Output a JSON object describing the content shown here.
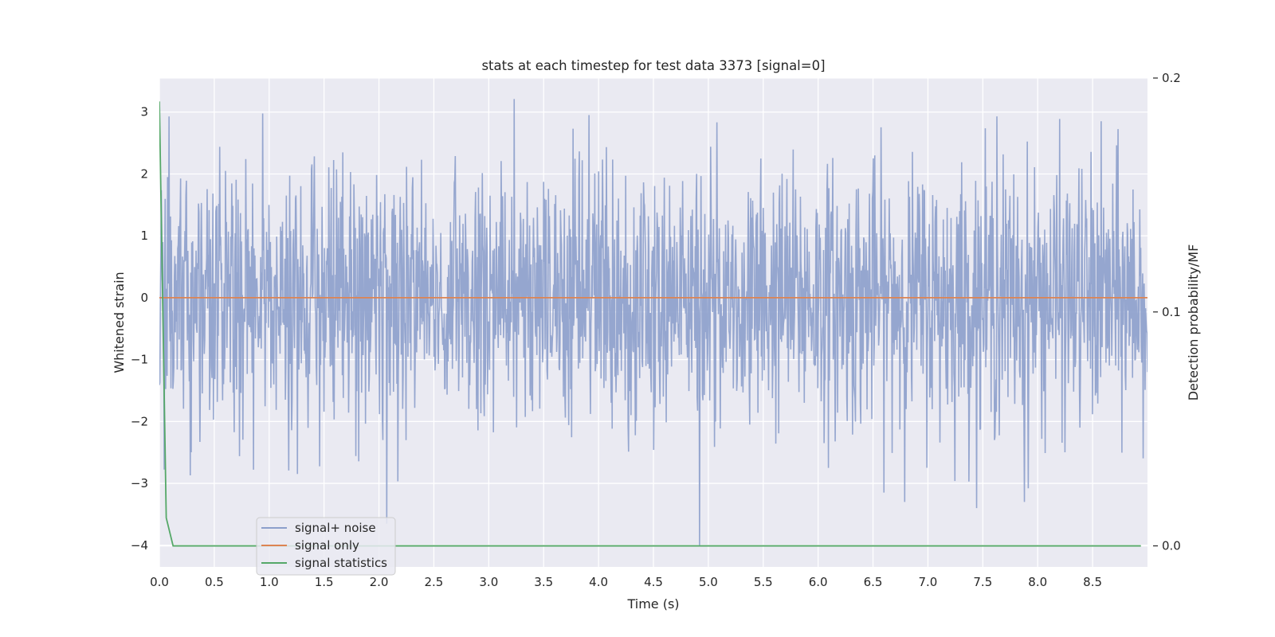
{
  "chart_data": {
    "type": "line",
    "title": "stats at each timestep for test data 3373 [signal=0]",
    "xlabel": "Time (s)",
    "ylabel": "Whitened strain",
    "y2label": "Detection probability/MF",
    "xlim": [
      0.0,
      9.0
    ],
    "ylim": [
      -4.35,
      3.55
    ],
    "y2lim": [
      -0.009,
      0.2
    ],
    "xticks": [
      0.0,
      0.5,
      1.0,
      1.5,
      2.0,
      2.5,
      3.0,
      3.5,
      4.0,
      4.5,
      5.0,
      5.5,
      6.0,
      6.5,
      7.0,
      7.5,
      8.0,
      8.5
    ],
    "xtick_labels": [
      "0.0",
      "0.5",
      "1.0",
      "1.5",
      "2.0",
      "2.5",
      "3.0",
      "3.5",
      "4.0",
      "4.5",
      "5.0",
      "5.5",
      "6.0",
      "6.5",
      "7.0",
      "7.5",
      "8.0",
      "8.5"
    ],
    "yticks": [
      3,
      2,
      1,
      0,
      -1,
      -2,
      -3,
      -4
    ],
    "ytick_labels": [
      "3",
      "2",
      "1",
      "0",
      "−1",
      "−2",
      "−3",
      "−4"
    ],
    "y2ticks": [
      0.2,
      0.1,
      0.0
    ],
    "y2tick_labels": [
      "0.2",
      "0.1",
      "0.0"
    ],
    "grid": true,
    "legend_position": "lower-left",
    "background": "#eaeaf2",
    "series": [
      {
        "name": "signal+ noise",
        "color": "#8c9fcb",
        "axis": "left",
        "style": "dense-noise",
        "n_samples": 2048,
        "sigma": 1.0,
        "x_range": [
          0.0,
          9.0
        ],
        "extremes": [
          [
            0.09,
            2.93
          ],
          [
            2.07,
            -3.65
          ],
          [
            3.23,
            3.21
          ],
          [
            4.92,
            -4.0
          ],
          [
            7.63,
            2.93
          ],
          [
            7.88,
            -3.3
          ]
        ]
      },
      {
        "name": "signal only",
        "color": "#dd8452",
        "axis": "left",
        "x": [
          0.0,
          9.0
        ],
        "y": [
          0.0,
          0.0
        ]
      },
      {
        "name": "signal statistics",
        "color": "#55a868",
        "axis": "right",
        "x": [
          0.0,
          0.0625,
          0.125,
          0.25,
          0.5,
          1.0,
          2.0,
          3.0,
          4.0,
          5.0,
          6.0,
          7.0,
          8.0,
          8.94
        ],
        "y": [
          0.19,
          0.012,
          0.0,
          0.0,
          0.0,
          0.0,
          0.0,
          0.0,
          0.0,
          0.0,
          0.0,
          0.0,
          0.0,
          0.0
        ]
      }
    ]
  }
}
